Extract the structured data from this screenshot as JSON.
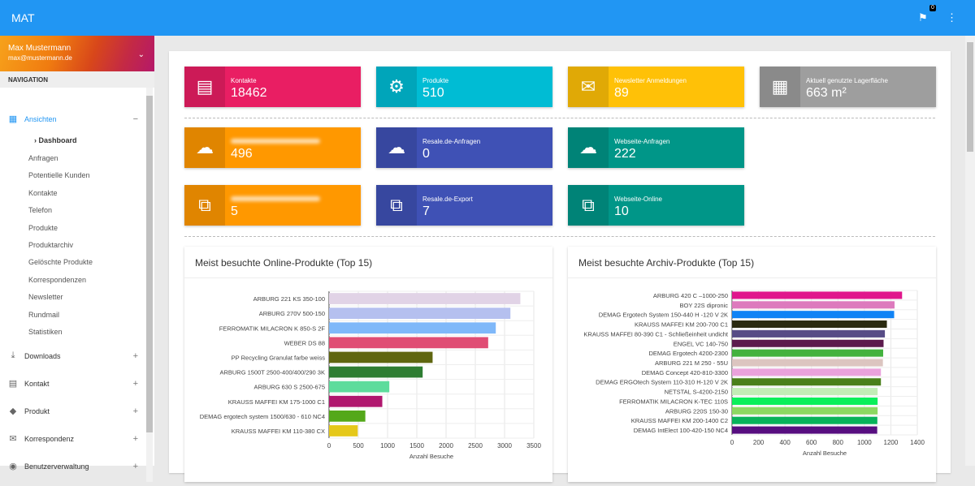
{
  "app": {
    "title": "MAT",
    "notification_count": "0"
  },
  "user": {
    "name": "Max Mustermann",
    "email": "max@mustermann.de"
  },
  "nav": {
    "heading": "NAVIGATION",
    "groups": [
      {
        "label": "Ansichten",
        "icon": "dashboard-icon",
        "toggle": "−"
      },
      {
        "label": "Downloads",
        "icon": "download-icon",
        "toggle": "+"
      },
      {
        "label": "Kontakt",
        "icon": "contact-card-icon",
        "toggle": "+"
      },
      {
        "label": "Produkt",
        "icon": "tag-icon",
        "toggle": "+"
      },
      {
        "label": "Korrespondenz",
        "icon": "mail-icon",
        "toggle": "+"
      },
      {
        "label": "Benutzerverwaltung",
        "icon": "account-icon",
        "toggle": "+"
      }
    ],
    "active_sub": "Dashboard",
    "subitems": [
      "Anfragen",
      "Potentielle Kunden",
      "Kontakte",
      "Telefon",
      "Produkte",
      "Produktarchiv",
      "Gelöschte Produkte",
      "Korrespondenzen",
      "Newsletter",
      "Rundmail",
      "Statistiken"
    ]
  },
  "cards": [
    {
      "label": "Kontakte",
      "value": "18462",
      "color": "#E91E63",
      "icon": "contact-card-icon"
    },
    {
      "label": "Produkte",
      "value": "510",
      "color": "#00BCD4",
      "icon": "gears-icon"
    },
    {
      "label": "Newsletter Anmeldungen",
      "value": "89",
      "color": "#FFC107",
      "icon": "envelope-icon"
    },
    {
      "label": "Aktuell genutzte Lagerfläche",
      "value": "663 m²",
      "color": "#9E9E9E",
      "icon": "building-icon"
    },
    {
      "label": "",
      "value": "496",
      "color": "#FF9800",
      "icon": "chat-icon"
    },
    {
      "label": "Resale.de-Anfragen",
      "value": "0",
      "color": "#3F51B5",
      "icon": "chat-icon"
    },
    {
      "label": "Webseite-Anfragen",
      "value": "222",
      "color": "#009688",
      "icon": "chat-icon"
    },
    {
      "label": "",
      "value": "5",
      "color": "#FF9800",
      "icon": "share-icon"
    },
    {
      "label": "Resale.de-Export",
      "value": "7",
      "color": "#3F51B5",
      "icon": "share-icon"
    },
    {
      "label": "Webseite-Online",
      "value": "10",
      "color": "#009688",
      "icon": "share-icon"
    }
  ],
  "chart_data": [
    {
      "type": "bar",
      "orientation": "horizontal",
      "title": "Meist besuchte Online-Produkte (Top 15)",
      "xlabel": "Anzahl Besuche",
      "xlim": [
        0,
        3500
      ],
      "xticks": [
        0,
        500,
        1000,
        1500,
        2000,
        2500,
        3000,
        3500
      ],
      "categories": [
        "ARBURG 221 KS 350-100",
        "ARBURG 270V 500-150",
        "FERROMATIK MILACRON K 850-S 2F",
        "WEBER DS 88",
        "PP Recycling Granulat farbe weiss",
        "ARBURG 1500T 2500-400/400/290 3K",
        "ARBURG 630 S 2500-675",
        "KRAUSS MAFFEI KM 175-1000 C1",
        "DEMAG ergotech system 1500/630 - 610 NC4",
        "KRAUSS MAFFEI KM 110-380 CX"
      ],
      "values": [
        3270,
        3100,
        2850,
        2720,
        1770,
        1600,
        1030,
        910,
        620,
        490
      ],
      "colors": [
        "#e1d3e6",
        "#b5c0ef",
        "#7fb8f9",
        "#e04d74",
        "#5f6610",
        "#2e7d32",
        "#5ddc9c",
        "#b0176e",
        "#54a81a",
        "#e5c81a"
      ]
    },
    {
      "type": "bar",
      "orientation": "horizontal",
      "title": "Meist besuchte Archiv-Produkte (Top 15)",
      "xlabel": "Anzahl Besuche",
      "xlim": [
        0,
        1400
      ],
      "xticks": [
        0,
        200,
        400,
        600,
        800,
        1000,
        1200,
        1400
      ],
      "categories": [
        "ARBURG 420 C –1000-250",
        "BOY 22S dipronic",
        "DEMAG Ergotech System 150-440 H -120 V 2K",
        "KRAUSS MAFFEI KM 200-700 C1",
        "KRAUSS MAFFEI 80-390 C1 - Schließeinheit undicht",
        "ENGEL VC 140-750",
        "DEMAG Ergotech 4200-2300",
        "ARBURG 221 M 250 - 55U",
        "DEMAG Concept 420-810-3300",
        "DEMAG ERGOtech System 110-310 H-120 V 2K",
        "NETSTAL S-4200-2150",
        "FERROMATIK MILACRON K-TEC 110S",
        "ARBURG 220S 150-30",
        "KRAUSS MAFFEI KM 200-1400 C2",
        "DEMAG IntElect 100-420-150 NC4"
      ],
      "values": [
        1285,
        1228,
        1225,
        1170,
        1155,
        1145,
        1142,
        1140,
        1125,
        1125,
        1100,
        1100,
        1100,
        1098,
        1097
      ],
      "colors": [
        "#e0168c",
        "#dd7abd",
        "#1083f5",
        "#2a2a10",
        "#574c86",
        "#5c1a4d",
        "#43b23e",
        "#dcc5c0",
        "#eaa2dc",
        "#4a7f1a",
        "#c2edb6",
        "#0aef5a",
        "#8cd862",
        "#08b25a",
        "#570e80"
      ]
    }
  ]
}
